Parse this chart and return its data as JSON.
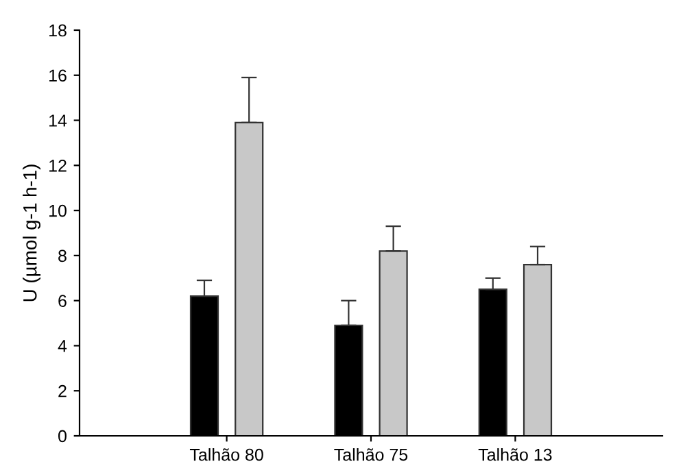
{
  "chart_data": {
    "type": "bar",
    "ylabel": "U (µmol g-1 h-1)",
    "categories": [
      "Talhão 80",
      "Talhão 75",
      "Talhão 13"
    ],
    "series": [
      {
        "color": "#000000",
        "values": [
          6.2,
          4.9,
          6.5
        ],
        "errors": [
          [
            6.2,
            6.9
          ],
          [
            4.9,
            6.0
          ],
          [
            6.5,
            7.0
          ]
        ]
      },
      {
        "color": "#c8c8c8",
        "values": [
          13.9,
          8.2,
          7.6
        ],
        "errors": [
          [
            13.9,
            15.9
          ],
          [
            8.2,
            9.3
          ],
          [
            7.6,
            8.4
          ]
        ]
      }
    ],
    "ylim": [
      0,
      18
    ],
    "yticks": [
      0,
      2,
      4,
      6,
      8,
      10,
      12,
      14,
      16,
      18
    ],
    "grid": false,
    "legend": false
  }
}
